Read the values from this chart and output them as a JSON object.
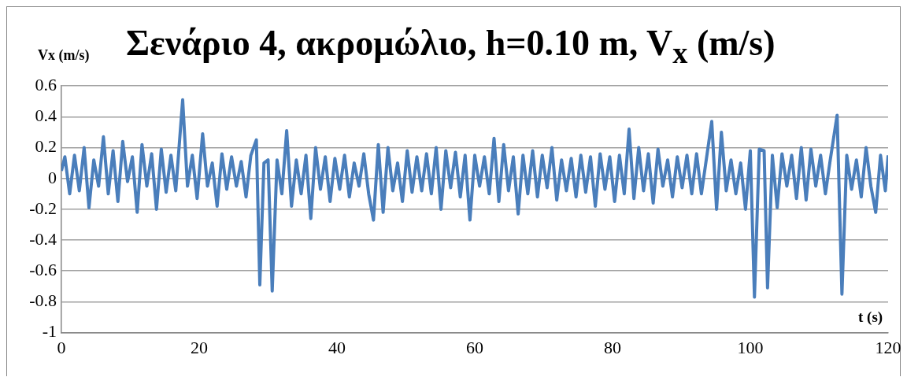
{
  "chart_data": {
    "type": "line",
    "title": "Σενάριο 4, ακρομώλιο, h=0.10 m, V$_{x}$ (m/s)",
    "ylabel": "Vx (m/s)",
    "xlabel": "t (s)",
    "x": [
      0,
      0.5,
      1.2,
      1.9,
      2.6,
      3.3,
      4.0,
      4.7,
      5.4,
      6.1,
      6.8,
      7.5,
      8.2,
      8.9,
      9.6,
      10.3,
      11.0,
      11.7,
      12.4,
      13.1,
      13.8,
      14.5,
      15.2,
      15.9,
      16.6,
      17.6,
      18.3,
      19.0,
      19.7,
      20.5,
      21.2,
      21.9,
      22.6,
      23.3,
      24.0,
      24.7,
      25.4,
      26.1,
      26.8,
      27.5,
      28.3,
      28.8,
      29.4,
      30.0,
      30.6,
      31.3,
      32.0,
      32.7,
      33.4,
      34.1,
      34.8,
      35.5,
      36.2,
      36.9,
      37.6,
      38.3,
      39.0,
      39.7,
      40.4,
      41.1,
      41.8,
      42.5,
      43.2,
      43.9,
      44.6,
      45.3,
      46.0,
      46.7,
      47.4,
      48.1,
      48.8,
      49.5,
      50.2,
      50.9,
      51.6,
      52.3,
      53.0,
      53.7,
      54.4,
      55.1,
      55.8,
      56.5,
      57.2,
      57.9,
      58.6,
      59.3,
      60.0,
      60.7,
      61.4,
      62.1,
      62.8,
      63.5,
      64.2,
      64.9,
      65.6,
      66.3,
      67.0,
      67.7,
      68.4,
      69.1,
      69.8,
      70.5,
      71.2,
      71.9,
      72.6,
      73.3,
      74.0,
      74.7,
      75.4,
      76.1,
      76.8,
      77.5,
      78.2,
      78.9,
      79.6,
      80.3,
      81.0,
      81.7,
      82.4,
      83.1,
      83.8,
      84.5,
      85.2,
      85.9,
      86.6,
      87.3,
      88.0,
      88.7,
      89.4,
      90.1,
      90.8,
      91.5,
      92.2,
      92.9,
      93.6,
      94.4,
      95.1,
      95.8,
      96.5,
      97.2,
      97.9,
      98.6,
      99.3,
      100.0,
      100.6,
      101.3,
      102.0,
      102.5,
      103.2,
      103.9,
      104.6,
      105.3,
      106.0,
      106.7,
      107.4,
      108.1,
      108.8,
      109.5,
      110.2,
      110.9,
      111.6,
      112.6,
      113.3,
      114.0,
      114.7,
      115.4,
      116.1,
      116.8,
      117.5,
      118.2,
      118.9,
      119.6,
      120
    ],
    "series": [
      {
        "color": "#4a7ebb",
        "values": [
          0.05,
          0.14,
          -0.1,
          0.15,
          -0.08,
          0.2,
          -0.19,
          0.12,
          -0.05,
          0.27,
          -0.1,
          0.18,
          -0.15,
          0.24,
          -0.02,
          0.14,
          -0.22,
          0.22,
          -0.05,
          0.16,
          -0.2,
          0.19,
          -0.09,
          0.15,
          -0.08,
          0.51,
          -0.05,
          0.15,
          -0.13,
          0.29,
          -0.05,
          0.1,
          -0.18,
          0.16,
          -0.07,
          0.14,
          -0.05,
          0.11,
          -0.12,
          0.15,
          0.25,
          -0.69,
          0.1,
          0.12,
          -0.73,
          0.12,
          -0.1,
          0.31,
          -0.18,
          0.12,
          -0.1,
          0.15,
          -0.26,
          0.2,
          -0.07,
          0.14,
          -0.15,
          0.13,
          -0.07,
          0.15,
          -0.12,
          0.1,
          -0.05,
          0.16,
          -0.1,
          -0.27,
          0.22,
          -0.22,
          0.2,
          -0.08,
          0.1,
          -0.15,
          0.18,
          -0.09,
          0.14,
          -0.08,
          0.16,
          -0.1,
          0.2,
          -0.2,
          0.18,
          -0.06,
          0.17,
          -0.12,
          0.15,
          -0.27,
          0.15,
          -0.05,
          0.14,
          -0.1,
          0.26,
          -0.15,
          0.22,
          -0.08,
          0.14,
          -0.23,
          0.15,
          -0.1,
          0.18,
          -0.12,
          0.15,
          -0.06,
          0.2,
          -0.14,
          0.12,
          -0.08,
          0.13,
          -0.12,
          0.15,
          -0.09,
          0.14,
          -0.18,
          0.16,
          -0.07,
          0.14,
          -0.15,
          0.15,
          -0.1,
          0.32,
          -0.13,
          0.2,
          -0.08,
          0.16,
          -0.16,
          0.19,
          -0.05,
          0.12,
          -0.12,
          0.14,
          -0.06,
          0.15,
          -0.1,
          0.16,
          -0.1,
          0.12,
          0.37,
          -0.2,
          0.3,
          -0.08,
          0.12,
          -0.1,
          0.1,
          -0.2,
          0.18,
          -0.77,
          0.19,
          0.18,
          -0.71,
          0.15,
          -0.19,
          0.16,
          -0.05,
          0.15,
          -0.13,
          0.2,
          -0.14,
          0.19,
          -0.05,
          0.15,
          -0.1,
          0.12,
          0.41,
          -0.75,
          0.15,
          -0.07,
          0.12,
          -0.12,
          0.2,
          -0.05,
          -0.22,
          0.15,
          -0.08,
          0.15
        ]
      }
    ],
    "xlim": [
      0,
      120
    ],
    "xticks": [
      0,
      20,
      40,
      60,
      80,
      100,
      120
    ],
    "ylim": [
      -1,
      0.6
    ],
    "yticks": [
      0.6,
      0.4,
      0.2,
      0,
      -0.2,
      -0.4,
      -0.6,
      -0.8,
      -1
    ],
    "grid": "y",
    "legend": false,
    "marker": "none",
    "line_style": "solid"
  }
}
